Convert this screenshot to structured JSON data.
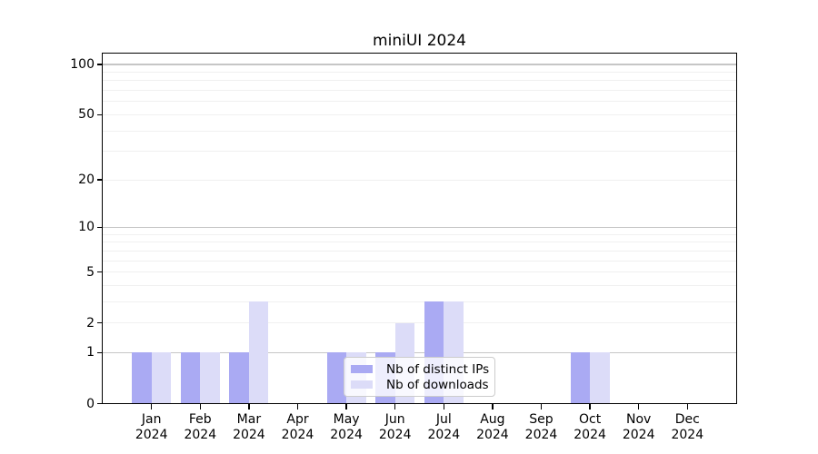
{
  "chart_data": {
    "type": "bar",
    "title": "miniUI 2024",
    "months": [
      "Jan",
      "Feb",
      "Mar",
      "Apr",
      "May",
      "Jun",
      "Jul",
      "Aug",
      "Sep",
      "Oct",
      "Nov",
      "Dec"
    ],
    "year": "2024",
    "series": [
      {
        "name": "Nb of distinct IPs",
        "color": "#aaaaf3",
        "values": [
          1,
          1,
          1,
          0,
          1,
          1,
          3,
          0,
          0,
          1,
          0,
          0
        ]
      },
      {
        "name": "Nb of downloads",
        "color": "#dcdcf8",
        "values": [
          1,
          1,
          3,
          0,
          1,
          2,
          3,
          0,
          0,
          1,
          0,
          0
        ]
      }
    ],
    "yscale": "log1p",
    "ylim": [
      0,
      117
    ],
    "ytick_values": [
      0,
      1,
      2,
      5,
      10,
      20,
      50,
      100
    ],
    "grid_major_values": [
      1,
      10,
      100
    ],
    "grid_minor_values": [
      2,
      3,
      4,
      5,
      6,
      7,
      8,
      9,
      20,
      30,
      40,
      50,
      60,
      70,
      80,
      90
    ],
    "legend": {
      "location": "lower-center-inside"
    },
    "colors": {
      "grid_major": "#c6c6c6",
      "grid_minor": "#f0f0f0",
      "axis": "#000000",
      "legend_border": "#cccccc",
      "background": "#ffffff"
    }
  }
}
